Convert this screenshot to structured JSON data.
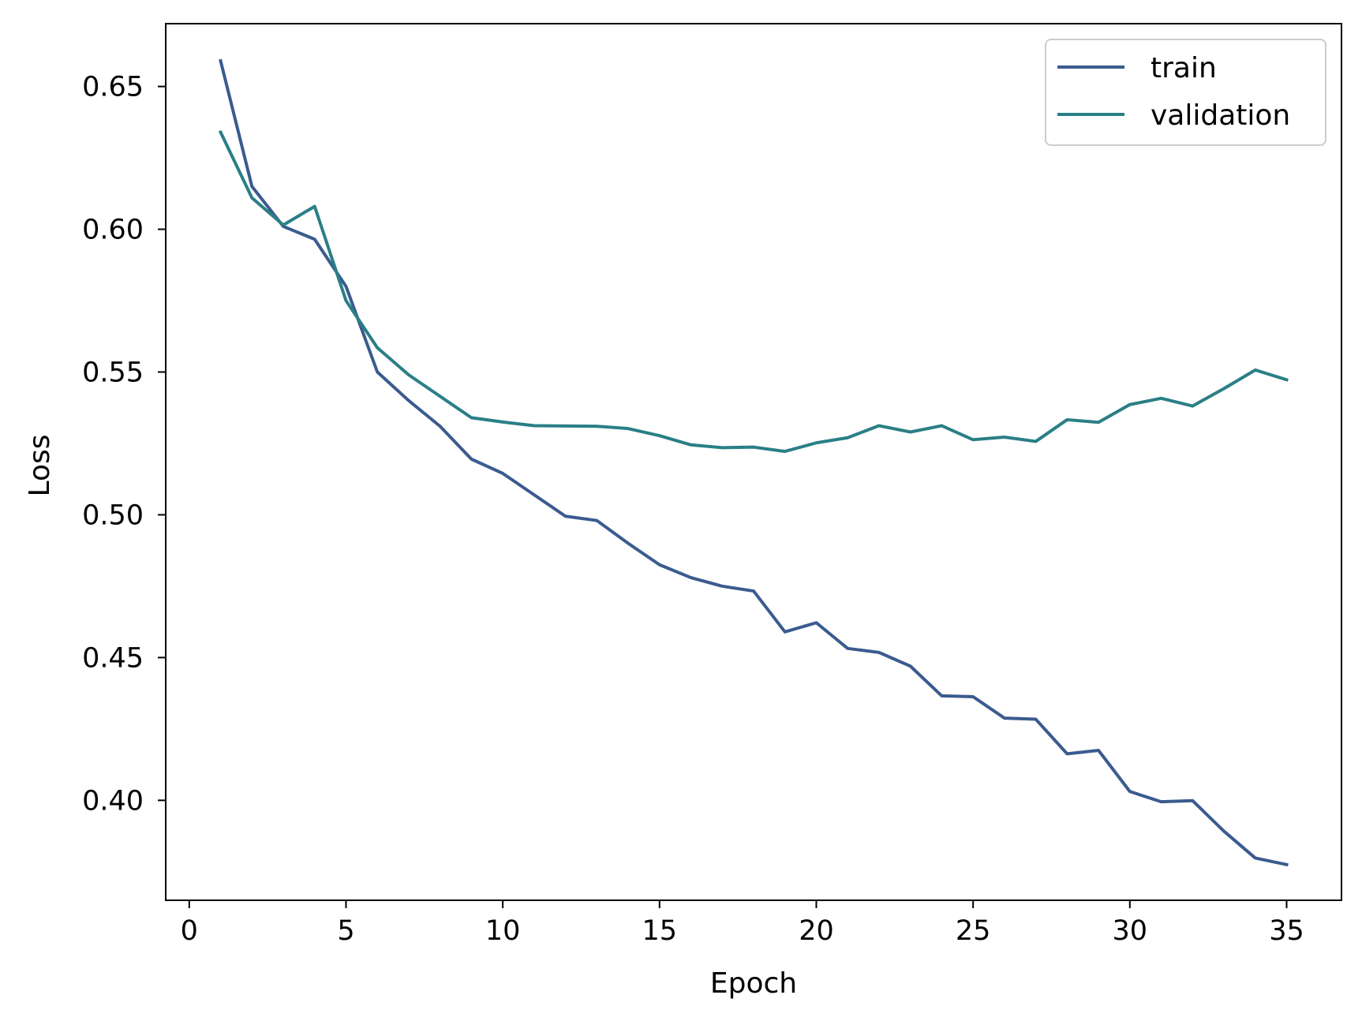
{
  "chart_data": {
    "type": "line",
    "title": "",
    "xlabel": "Epoch",
    "ylabel": "Loss",
    "xlim": [
      -0.75,
      36.75
    ],
    "ylim": [
      0.365,
      0.672
    ],
    "xticks": [
      0,
      5,
      10,
      15,
      20,
      25,
      30,
      35
    ],
    "yticks": [
      0.4,
      0.45,
      0.5,
      0.55,
      0.6,
      0.65
    ],
    "xtick_labels": [
      "0",
      "5",
      "10",
      "15",
      "20",
      "25",
      "30",
      "35"
    ],
    "ytick_labels": [
      "0.40",
      "0.45",
      "0.50",
      "0.55",
      "0.60",
      "0.65"
    ],
    "grid": false,
    "legend_position": "top-right",
    "x": [
      1,
      2,
      3,
      4,
      5,
      6,
      7,
      8,
      9,
      10,
      11,
      12,
      13,
      14,
      15,
      16,
      17,
      18,
      19,
      20,
      21,
      22,
      23,
      24,
      25,
      26,
      27,
      28,
      29,
      30,
      31,
      32,
      33,
      34,
      35
    ],
    "series": [
      {
        "name": "train",
        "color": "#3a5b8f",
        "values": [
          0.659,
          0.615,
          0.601,
          0.5965,
          0.58,
          0.55,
          0.54,
          0.531,
          0.5195,
          0.5145,
          0.507,
          0.4995,
          0.498,
          0.49,
          0.4825,
          0.478,
          0.475,
          0.4733,
          0.459,
          0.4622,
          0.4532,
          0.4518,
          0.447,
          0.4366,
          0.4363,
          0.4288,
          0.4284,
          0.4163,
          0.4175,
          0.4031,
          0.3995,
          0.3999,
          0.3892,
          0.3798,
          0.3775
        ]
      },
      {
        "name": "validation",
        "color": "#2a7f86",
        "values": [
          0.634,
          0.611,
          0.6015,
          0.608,
          0.575,
          0.5585,
          0.549,
          0.5415,
          0.534,
          0.5325,
          0.5312,
          0.5311,
          0.531,
          0.5302,
          0.5277,
          0.5245,
          0.5235,
          0.5237,
          0.5222,
          0.5252,
          0.527,
          0.5312,
          0.529,
          0.5312,
          0.5263,
          0.5272,
          0.5257,
          0.5333,
          0.5324,
          0.5386,
          0.5408,
          0.5381,
          0.5442,
          0.5507,
          0.5473
        ]
      }
    ]
  }
}
